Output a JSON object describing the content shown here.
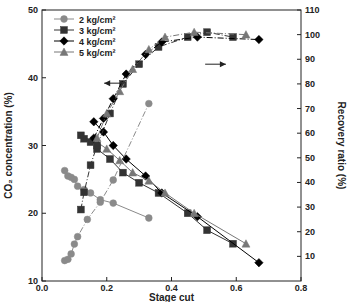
{
  "chart_data": {
    "type": "line",
    "x_label": "Stage cut",
    "y_label": "CO₂ concentration (%)",
    "y2_label": "Recovery ratio (%)",
    "xlim": [
      0,
      0.8
    ],
    "xticks": [
      {
        "value": 0,
        "label": "0.0"
      },
      0.2,
      0.4,
      0.6,
      0.8
    ],
    "ylim": [
      10,
      50
    ],
    "yticks": [
      10,
      20,
      30,
      40,
      50
    ],
    "y2lim": [
      0,
      110
    ],
    "y2ticks": [
      10,
      20,
      30,
      40,
      50,
      60,
      70,
      80,
      90,
      100,
      110
    ],
    "legend": "upper left",
    "series": [
      {
        "name": "2 kg/cm²",
        "color": "#8a8a8a",
        "marker": "circle",
        "line_style": "solid",
        "x": [
          0.07,
          0.08,
          0.09,
          0.1,
          0.11,
          0.13,
          0.15,
          0.18,
          0.22,
          0.33
        ],
        "values": [
          26.3,
          25.5,
          25.3,
          25,
          24,
          23.5,
          23,
          22,
          21.5,
          19.3
        ]
      },
      {
        "name": "3 kg/cm²",
        "color": "#333333",
        "marker": "square",
        "line_style": "solid",
        "x": [
          0.12,
          0.13,
          0.15,
          0.17,
          0.21,
          0.25,
          0.3,
          0.36,
          0.45,
          0.51,
          0.59
        ],
        "values": [
          31.5,
          31,
          30.5,
          29.5,
          28,
          26,
          24.5,
          23,
          20,
          17.5,
          15.5
        ]
      },
      {
        "name": "4 kg/cm²",
        "color": "#000000",
        "marker": "diamond",
        "line_style": "solid",
        "x": [
          0.16,
          0.19,
          0.22,
          0.26,
          0.32,
          0.37,
          0.48,
          0.67
        ],
        "values": [
          33.5,
          32,
          30,
          28,
          25.5,
          23,
          19.5,
          12.7
        ]
      },
      {
        "name": "5 kg/cm²",
        "color": "#777777",
        "marker": "triangle",
        "line_style": "solid",
        "x": [
          0.17,
          0.2,
          0.24,
          0.28,
          0.33,
          0.38,
          0.47,
          0.63
        ],
        "values": [
          30.5,
          29.5,
          27.8,
          26,
          24.8,
          23,
          20,
          15.5
        ]
      },
      {
        "color": "#8a8a8a",
        "marker": "circle",
        "line_style": "dash-dot",
        "axis": "y2",
        "x": [
          0.07,
          0.08,
          0.09,
          0.1,
          0.11,
          0.14,
          0.18,
          0.22,
          0.33
        ],
        "values": [
          8.3,
          8.8,
          11,
          15,
          18,
          25,
          32,
          41,
          72
        ]
      },
      {
        "color": "#333333",
        "marker": "square",
        "line_style": "dash-dot",
        "axis": "y2",
        "x": [
          0.12,
          0.13,
          0.15,
          0.17,
          0.21,
          0.25,
          0.3,
          0.36,
          0.45,
          0.51,
          0.59
        ],
        "values": [
          29,
          36,
          47,
          55,
          68,
          80,
          88,
          95,
          99,
          101,
          99
        ]
      },
      {
        "color": "#000000",
        "marker": "diamond",
        "line_style": "dash-dot",
        "axis": "y2",
        "x": [
          0.16,
          0.19,
          0.22,
          0.26,
          0.32,
          0.37,
          0.48,
          0.67
        ],
        "values": [
          58,
          66,
          74,
          84,
          92,
          97,
          99,
          98
        ]
      },
      {
        "color": "#777777",
        "marker": "triangle",
        "line_style": "dash-dot",
        "axis": "y2",
        "x": [
          0.17,
          0.2,
          0.24,
          0.28,
          0.33,
          0.38,
          0.47,
          0.63
        ],
        "values": [
          58,
          68,
          77,
          86,
          94,
          99,
          101,
          100
        ]
      }
    ]
  }
}
